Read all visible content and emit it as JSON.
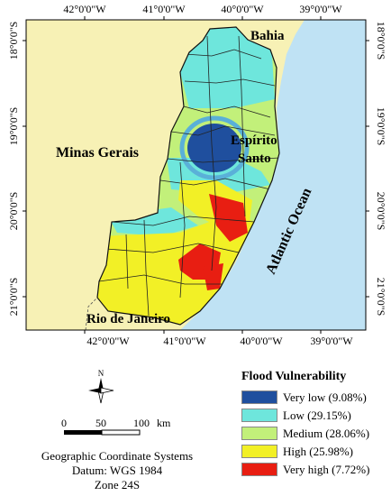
{
  "map": {
    "lon_labels": [
      "42°0'0\"W",
      "41°0'0\"W",
      "40°0'0\"W",
      "39°0'0\"W"
    ],
    "lat_labels": [
      "18°0'0\"S",
      "19°0'0\"S",
      "20°0'0\"S",
      "21°0'0\"S"
    ],
    "regions": {
      "bahia": "Bahia",
      "minas": "Minas Gerais",
      "espirito_line1": "Espírito",
      "espirito_line2": "Santo",
      "ocean": "Atlantic Ocean",
      "rio": "Rio de Janeiro"
    }
  },
  "legend": {
    "title": "Flood Vulnerability",
    "items": [
      {
        "label": "Very low (9.08%)",
        "color": "#1f4f9e"
      },
      {
        "label": "Low (29.15%)",
        "color": "#6ee6dc"
      },
      {
        "label": "Medium (28.06%)",
        "color": "#c2f07a"
      },
      {
        "label": "High (25.98%)",
        "color": "#f2f026"
      },
      {
        "label": "Very high (7.72%)",
        "color": "#e81e12"
      }
    ]
  },
  "north_arrow": {
    "letter": "N"
  },
  "scale_bar": {
    "ticks": [
      "0",
      "50",
      "100"
    ],
    "unit": "km"
  },
  "footer": {
    "line1": "Geographic Coordinate Systems",
    "line2": "Datum: WGS 1984",
    "line3": "Zone 24S"
  }
}
